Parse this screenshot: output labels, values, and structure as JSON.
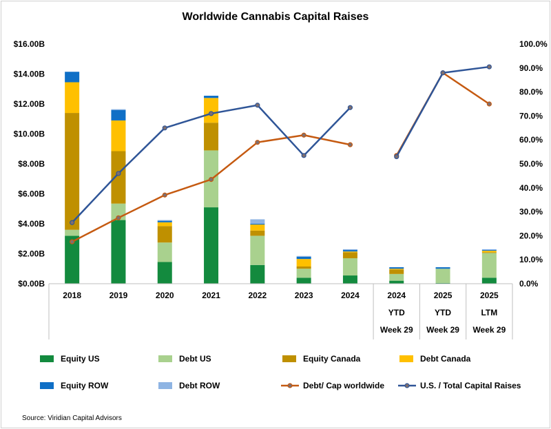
{
  "chart_data": {
    "type": "bar",
    "title": "Worldwide Cannabis Capital Raises",
    "source": "Source: Viridian Capital Advisors",
    "categories": [
      [
        "2018"
      ],
      [
        "2019"
      ],
      [
        "2020"
      ],
      [
        "2021"
      ],
      [
        "2022"
      ],
      [
        "2023"
      ],
      [
        "2024"
      ],
      [
        "2024",
        "YTD",
        "Week 29"
      ],
      [
        "2025",
        "YTD",
        "Week 29"
      ],
      [
        "2025",
        "LTM",
        "Week 29"
      ]
    ],
    "y_left": {
      "min": 0,
      "max": 16,
      "step": 2,
      "tick_labels": [
        "$0.00B",
        "$2.00B",
        "$4.00B",
        "$6.00B",
        "$8.00B",
        "$10.00B",
        "$12.00B",
        "$14.00B",
        "$16.00B"
      ]
    },
    "y_right": {
      "min": 0,
      "max": 100,
      "step": 10,
      "tick_labels": [
        "0.0%",
        "10.0%",
        "20.0%",
        "30.0%",
        "40.0%",
        "50.0%",
        "60.0%",
        "70.0%",
        "80.0%",
        "90.0%",
        "100.0%"
      ]
    },
    "stacked_series": [
      {
        "name": "Equity US",
        "color": "#138a3e",
        "values": [
          3.2,
          4.25,
          1.45,
          5.1,
          1.25,
          0.4,
          0.55,
          0.2,
          0.05,
          0.4
        ]
      },
      {
        "name": "Debt US",
        "color": "#a9d18e",
        "values": [
          0.4,
          1.1,
          1.3,
          3.8,
          1.95,
          0.6,
          1.15,
          0.45,
          0.95,
          1.65
        ]
      },
      {
        "name": "Equity Canada",
        "color": "#bf9000",
        "values": [
          7.8,
          3.5,
          1.1,
          1.85,
          0.35,
          0.15,
          0.4,
          0.3,
          0.0,
          0.05
        ]
      },
      {
        "name": "Debt Canada",
        "color": "#ffc000",
        "values": [
          2.05,
          2.05,
          0.25,
          1.65,
          0.4,
          0.5,
          0.05,
          0.05,
          0.0,
          0.1
        ]
      },
      {
        "name": "Equity ROW",
        "color": "#0f6fc6",
        "values": [
          0.7,
          0.7,
          0.1,
          0.15,
          0.05,
          0.15,
          0.1,
          0.1,
          0.1,
          0.05
        ]
      },
      {
        "name": "Debt ROW",
        "color": "#8eb4e3",
        "values": [
          0.0,
          0.05,
          0.05,
          0.0,
          0.3,
          0.05,
          0.05,
          0.0,
          0.0,
          0.05
        ]
      }
    ],
    "line_series": [
      {
        "name": "Debt/ Cap worldwide",
        "color": "#c55a11",
        "values": [
          17.5,
          27.5,
          37.0,
          43.5,
          59.0,
          62.0,
          58.0,
          53.5,
          88.0,
          75.0
        ],
        "break_after": 6
      },
      {
        "name": "U.S. / Total Capital Raises",
        "color": "#2f5597",
        "values": [
          25.5,
          46.0,
          65.0,
          71.0,
          74.5,
          53.5,
          73.5,
          53.0,
          88.0,
          90.5
        ],
        "break_after": 6
      }
    ]
  }
}
